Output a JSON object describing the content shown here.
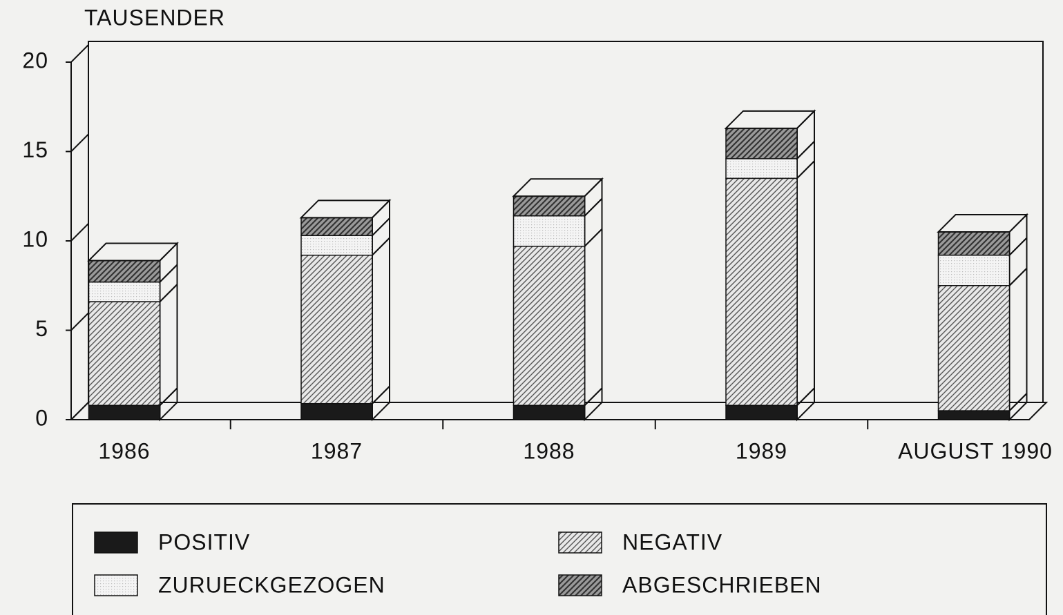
{
  "chart_data": {
    "type": "bar3d_stacked",
    "y_label": "TAUSENDER",
    "categories": [
      "1986",
      "1987",
      "1988",
      "1989",
      "AUGUST 1990"
    ],
    "series": [
      {
        "name": "POSITIV",
        "color": "#1a1a1a",
        "pattern": "solid",
        "values": [
          0.8,
          0.9,
          0.8,
          0.8,
          0.5
        ]
      },
      {
        "name": "NEGATIV",
        "color": "#555555",
        "pattern": "hatch",
        "values": [
          5.8,
          8.3,
          8.9,
          12.7,
          7.0
        ]
      },
      {
        "name": "ZURUECKGEZOGEN",
        "color": "#bbbbbb",
        "pattern": "dots",
        "values": [
          1.1,
          1.1,
          1.7,
          1.1,
          1.7
        ]
      },
      {
        "name": "ABGESCHRIEBEN",
        "color": "#333333",
        "pattern": "dense",
        "values": [
          1.2,
          1.0,
          1.1,
          1.7,
          1.3
        ]
      }
    ],
    "ylim": [
      0,
      20
    ],
    "yticks": [
      0,
      5,
      10,
      15,
      20
    ]
  }
}
